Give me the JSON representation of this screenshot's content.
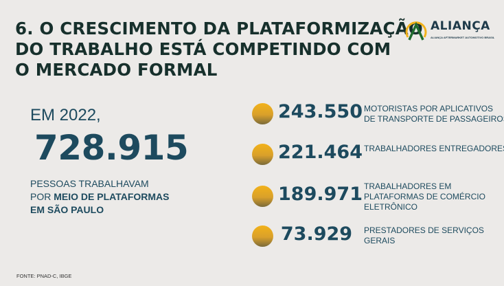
{
  "title": {
    "lines": [
      "6. O CRESCIMENTO DA PLATAFORMIZAÇÃO",
      "DO TRABALHO ESTÁ COMPETINDO COM",
      "O MERCADO FORMAL"
    ]
  },
  "logo": {
    "name": "ALIANÇA",
    "tagline": "ALIANÇA AFTERMARKET AUTOMOTIVO BRASIL",
    "colors": {
      "arc": "#f2b21a",
      "chevron": "#1f6b2e"
    }
  },
  "summary": {
    "intro": "EM 2022,",
    "total": "728.915",
    "line1": "PESSOAS TRABALHAVAM",
    "line2_prefix": "POR ",
    "line2_bold": "MEIO DE PLATAFORMAS",
    "line3_bold": "EM SÃO PAULO"
  },
  "items": [
    {
      "value": "243.550",
      "label": [
        "MOTORISTAS POR APLICATIVOS",
        "DE TRANSPORTE DE PASSAGEIROS"
      ]
    },
    {
      "value": "221.464",
      "label": [
        "TRABALHADORES ENTREGADORES"
      ]
    },
    {
      "value": "189.971",
      "label": [
        "TRABALHADORES EM",
        "PLATAFORMAS DE COMÉRCIO",
        "ELETRÔNICO"
      ]
    },
    {
      "value": "73.929",
      "label": [
        "PRESTADORES DE SERVIÇOS",
        "GERAIS"
      ]
    }
  ],
  "source": "FONTE: PNAD-C, IBGE",
  "colors": {
    "text": "#1d4a5e",
    "title": "#17302c",
    "accent": "#f2b21a",
    "background": "#eceae8"
  }
}
